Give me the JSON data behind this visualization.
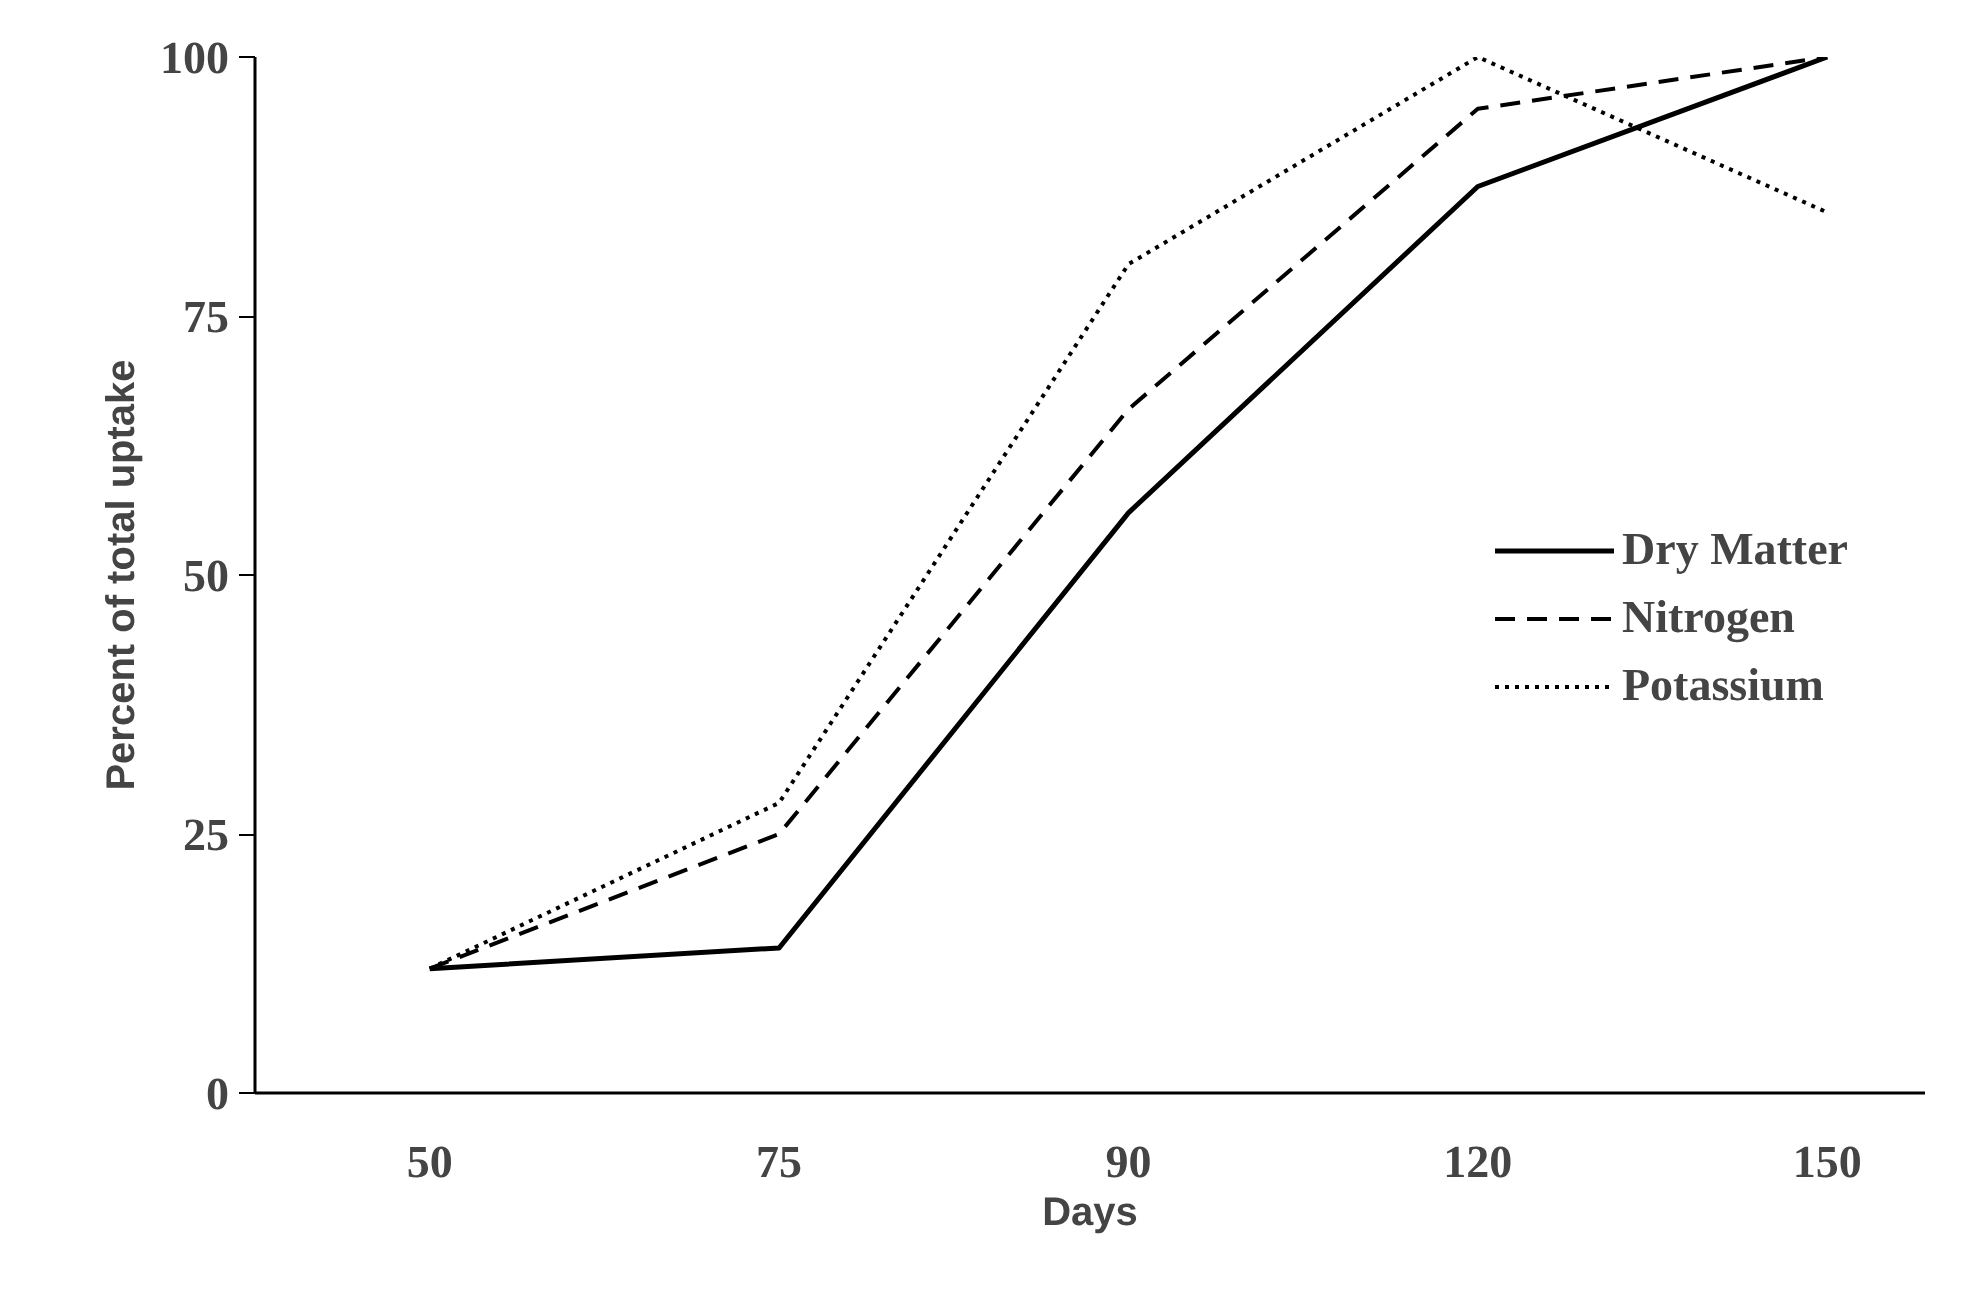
{
  "chart_data": {
    "type": "line",
    "xlabel": "Days",
    "ylabel": "Percent of total uptake",
    "categories": [
      "50",
      "75",
      "90",
      "120",
      "150"
    ],
    "series": [
      {
        "name": "Dry Matter",
        "color": "#000000",
        "line_style": "solid",
        "values": [
          12,
          14,
          56,
          87.5,
          100
        ]
      },
      {
        "name": "Nitrogen",
        "color": "#000000",
        "line_style": "dashed",
        "values": [
          12,
          25,
          66,
          95,
          100
        ]
      },
      {
        "name": "Potassium",
        "color": "#000000",
        "line_style": "dotted",
        "values": [
          12,
          28,
          80,
          100,
          85
        ]
      }
    ],
    "ylim": [
      0,
      100
    ],
    "yticks": [
      0,
      25,
      50,
      75,
      100
    ],
    "grid": false,
    "legend": "right",
    "marker": "none"
  }
}
